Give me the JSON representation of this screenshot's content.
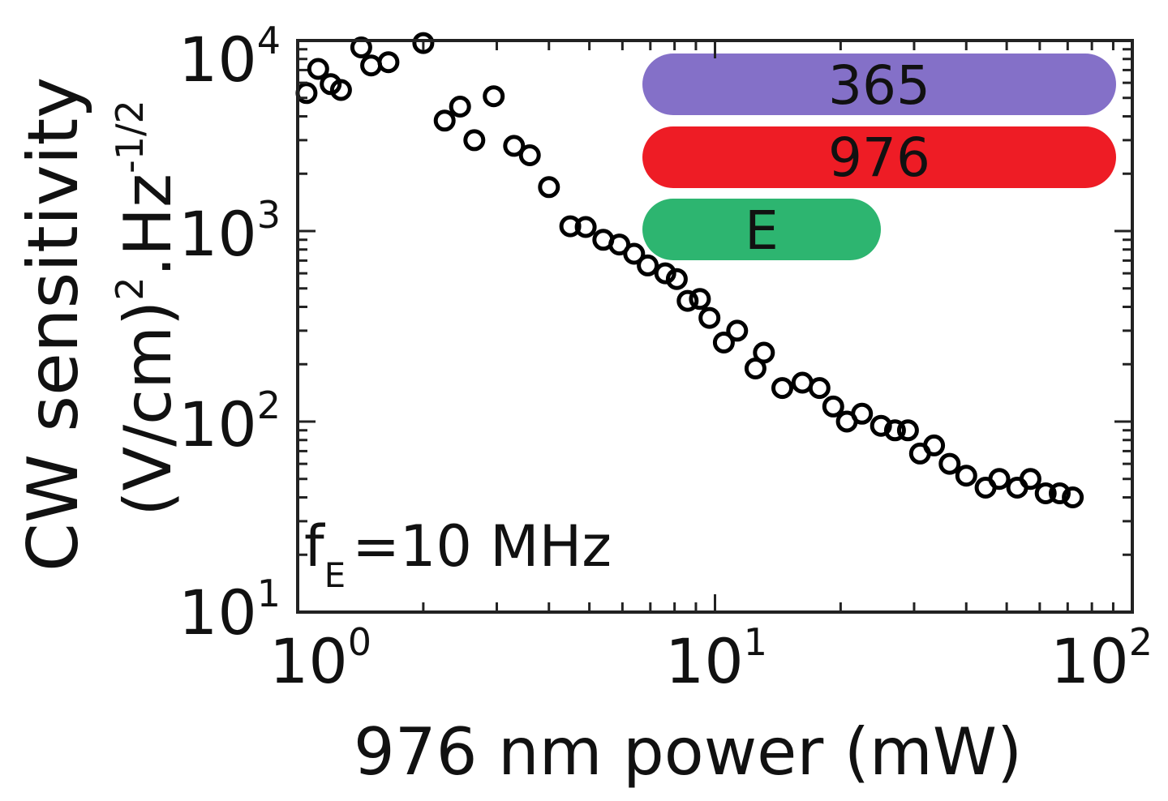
{
  "chart_data": {
    "type": "scatter",
    "xlabel": "976 nm power (mW)",
    "ylabel_line1": "CW sensitivity",
    "ylabel_line2": "(V/cm)",
    "ylabel_sup2": "2",
    "ylabel_unit": ".Hz",
    "ylabel_sup_unit": "-1/2",
    "x_scale": "log",
    "y_scale": "log",
    "xlim": [
      1,
      100
    ],
    "ylim": [
      10,
      10000
    ],
    "x_ticks": [
      {
        "base": "10",
        "exp": "0"
      },
      {
        "base": "10",
        "exp": "1"
      },
      {
        "base": "10",
        "exp": "2"
      }
    ],
    "y_ticks": [
      {
        "base": "10",
        "exp": "1"
      },
      {
        "base": "10",
        "exp": "2"
      },
      {
        "base": "10",
        "exp": "3"
      },
      {
        "base": "10",
        "exp": "4"
      }
    ],
    "grid": false,
    "annotation": {
      "text": "f",
      "sub": "E",
      "rest": "=10 MHz"
    },
    "legend_bars": [
      {
        "label": "365",
        "color": "#8470c8",
        "extent": "full"
      },
      {
        "label": "976",
        "color": "#ee1c25",
        "extent": "full"
      },
      {
        "label": "E",
        "color": "#2db570",
        "extent": "half"
      }
    ],
    "marker": {
      "shape": "open-circle",
      "color": "#000000"
    },
    "series": [
      {
        "points": [
          [
            1.05,
            5300
          ],
          [
            1.12,
            7100
          ],
          [
            1.2,
            5900
          ],
          [
            1.27,
            5500
          ],
          [
            1.42,
            9200
          ],
          [
            1.5,
            7400
          ],
          [
            1.65,
            7700
          ],
          [
            2.0,
            9700
          ],
          [
            2.25,
            3800
          ],
          [
            2.45,
            4500
          ],
          [
            2.65,
            3000
          ],
          [
            2.95,
            5100
          ],
          [
            3.3,
            2800
          ],
          [
            3.6,
            2500
          ],
          [
            4.0,
            1700
          ],
          [
            4.5,
            1060
          ],
          [
            4.9,
            1050
          ],
          [
            5.4,
            900
          ],
          [
            5.9,
            850
          ],
          [
            6.4,
            760
          ],
          [
            6.9,
            660
          ],
          [
            7.6,
            600
          ],
          [
            8.1,
            560
          ],
          [
            8.6,
            430
          ],
          [
            9.2,
            440
          ],
          [
            9.7,
            350
          ],
          [
            10.5,
            260
          ],
          [
            11.3,
            300
          ],
          [
            12.5,
            190
          ],
          [
            13.1,
            230
          ],
          [
            14.5,
            150
          ],
          [
            16.2,
            160
          ],
          [
            17.8,
            150
          ],
          [
            19.2,
            120
          ],
          [
            20.7,
            100
          ],
          [
            22.5,
            110
          ],
          [
            25.0,
            95
          ],
          [
            27.0,
            90
          ],
          [
            29.0,
            90
          ],
          [
            31.0,
            68
          ],
          [
            33.5,
            75
          ],
          [
            36.5,
            60
          ],
          [
            40.0,
            52
          ],
          [
            44.5,
            45
          ],
          [
            48.0,
            50
          ],
          [
            53.0,
            45
          ],
          [
            57.0,
            50
          ],
          [
            62.0,
            42
          ],
          [
            67.0,
            42
          ],
          [
            72.0,
            40
          ]
        ]
      }
    ]
  }
}
